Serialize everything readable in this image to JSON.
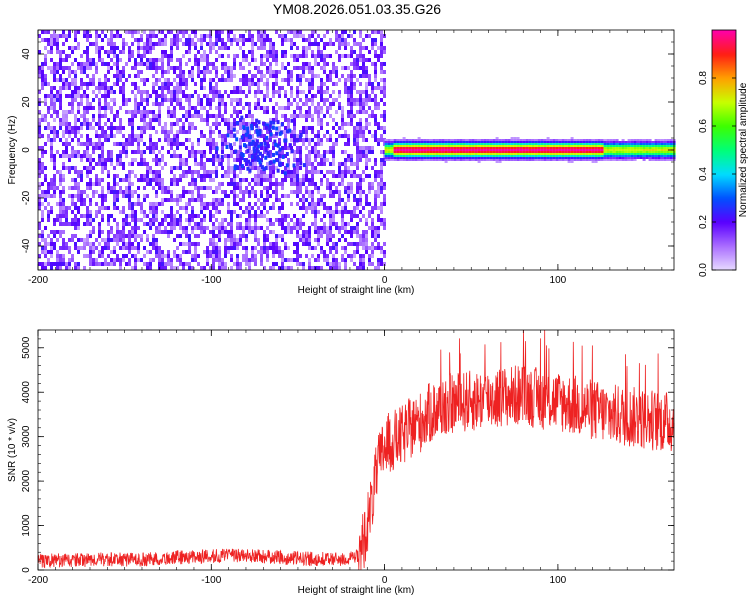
{
  "title": "YM08.2026.051.03.35.G26",
  "colors": {
    "snr_line": "#ee2222",
    "spectro_bg": "#ffffff",
    "spectro_noise": "#7a22ee",
    "axis": "#000000"
  },
  "chart_data": [
    {
      "type": "heatmap",
      "xlabel": "Height of straight line (km)",
      "ylabel": "Frequency (Hz)",
      "xlim": [
        -200,
        167
      ],
      "ylim": [
        -50,
        50
      ],
      "x_ticks": [
        -200,
        -100,
        0,
        100
      ],
      "y_ticks": [
        -40,
        -20,
        0,
        20,
        40
      ],
      "x_tick_labels": [
        "-200",
        "-100",
        "0",
        "100"
      ],
      "y_tick_labels": [
        "-40",
        "-20",
        "0",
        "20",
        "40"
      ],
      "colorbar": {
        "label": "Normalized spectral amplitude",
        "range": [
          0,
          1
        ],
        "ticks": [
          0,
          0.2,
          0.4,
          0.6,
          0.8
        ],
        "tick_labels": [
          "0.0",
          "0.2",
          "0.4",
          "0.6",
          "0.8"
        ],
        "colormap": "rainbow"
      },
      "description_regions": {
        "noise_x_range": [
          -200,
          0
        ],
        "signal_x_range": [
          0,
          167
        ],
        "signal_frequency_hz": 0,
        "signal_peak_x_range": [
          5,
          125
        ]
      }
    },
    {
      "type": "line",
      "xlabel": "Height of straight line (km)",
      "ylabel": "SNR (10 * v/v)",
      "xlim": [
        -200,
        167
      ],
      "ylim": [
        0,
        5400
      ],
      "x_ticks": [
        -200,
        -100,
        0,
        100
      ],
      "y_ticks": [
        0,
        1000,
        2000,
        3000,
        4000,
        5000
      ],
      "x_tick_labels": [
        "-200",
        "-100",
        "0",
        "100"
      ],
      "y_tick_labels": [
        "0",
        "1000",
        "2000",
        "3000",
        "4000",
        "5000"
      ],
      "series": [
        {
          "x": [
            -200,
            -180,
            -160,
            -140,
            -120,
            -100,
            -85,
            -70,
            -55,
            -40,
            -25,
            -18,
            -15,
            -12,
            -8,
            -4,
            0,
            5,
            10,
            15,
            20,
            25,
            30,
            35,
            40,
            50,
            60,
            70,
            80,
            90,
            100,
            110,
            120,
            130,
            140,
            150,
            160,
            167
          ],
          "values": [
            200,
            210,
            230,
            220,
            270,
            300,
            320,
            290,
            260,
            240,
            230,
            260,
            300,
            700,
            1400,
            2300,
            2800,
            2900,
            3000,
            3200,
            3300,
            3500,
            3600,
            3700,
            3750,
            3800,
            3850,
            3900,
            3950,
            3850,
            3800,
            3700,
            3600,
            3500,
            3450,
            3400,
            3350,
            3300
          ]
        }
      ]
    }
  ]
}
